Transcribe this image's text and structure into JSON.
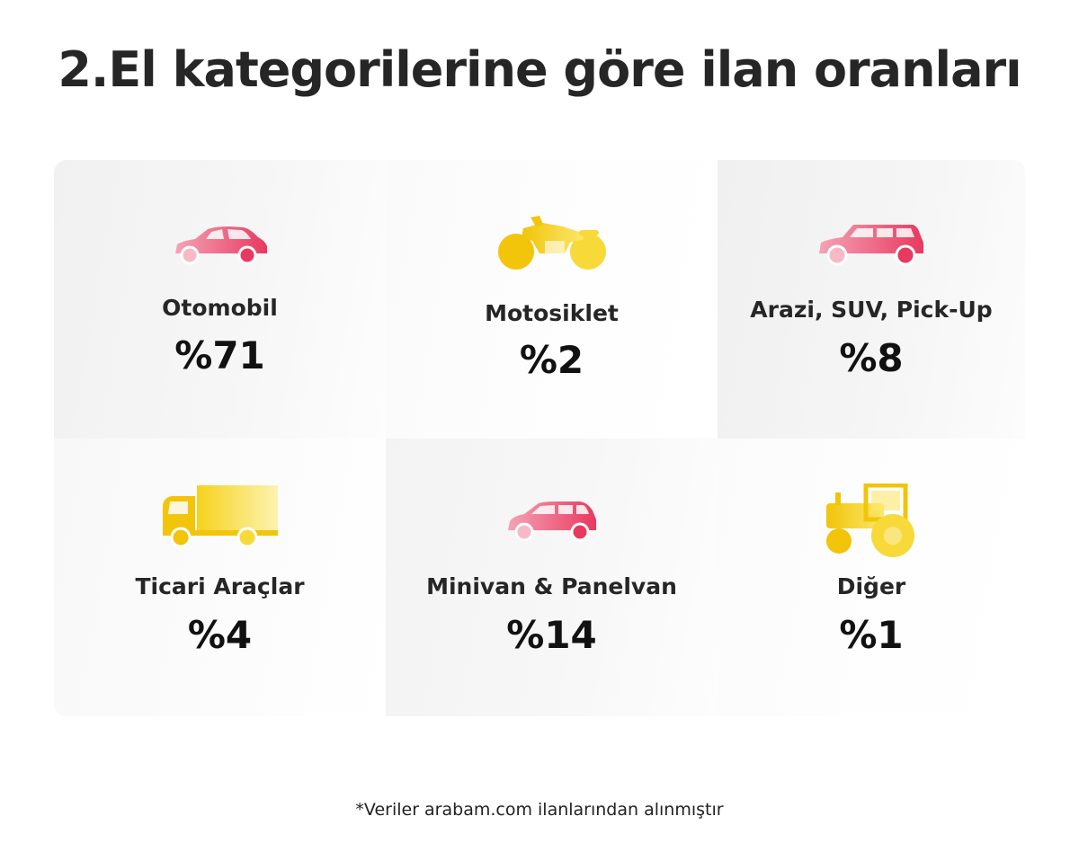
{
  "title": "2.El kategorilerine göre ilan oranları",
  "colors": {
    "pink": "#ea4f73",
    "yellow": "#f5cf1c",
    "text": "#262626"
  },
  "categories": [
    {
      "label": "Otomobil",
      "value": "%71",
      "icon": "car-icon"
    },
    {
      "label": "Motosiklet",
      "value": "%2",
      "icon": "motorcycle-icon"
    },
    {
      "label": "Arazi, SUV, Pick-Up",
      "value": "%8",
      "icon": "suv-icon"
    },
    {
      "label": "Ticari Araçlar",
      "value": "%4",
      "icon": "truck-icon"
    },
    {
      "label": "Minivan & Panelvan",
      "value": "%14",
      "icon": "minivan-icon"
    },
    {
      "label": "Diğer",
      "value": "%1",
      "icon": "tractor-icon"
    }
  ],
  "footnote": "*Veriler arabam.com ilanlarından alınmıştır"
}
